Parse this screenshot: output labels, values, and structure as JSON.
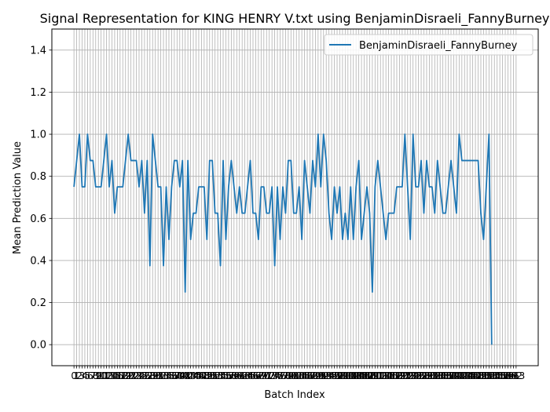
{
  "chart_data": {
    "type": "line",
    "title": "Signal Representation for KING HENRY V.txt using BenjaminDisraeli_FannyBurney",
    "xlabel": "Batch Index",
    "ylabel": "Mean Prediction Value",
    "ylim": [
      -0.1,
      1.5
    ],
    "yticks": [
      "0.0",
      "0.2",
      "0.4",
      "0.6",
      "0.8",
      "1.0",
      "1.2",
      "1.4"
    ],
    "grid": true,
    "legend_placement": "top-right",
    "x_start": 0,
    "x_end": 163,
    "series": [
      {
        "name": "BenjaminDisraeli_FannyBurney",
        "color": "#1f77b4",
        "values": [
          0.75,
          0.875,
          1.0,
          0.75,
          0.75,
          1.0,
          0.875,
          0.875,
          0.75,
          0.75,
          0.75,
          0.875,
          1.0,
          0.75,
          0.875,
          0.625,
          0.75,
          0.75,
          0.75,
          0.875,
          1.0,
          0.875,
          0.875,
          0.875,
          0.75,
          0.875,
          0.625,
          0.875,
          0.375,
          1.0,
          0.875,
          0.75,
          0.75,
          0.375,
          0.75,
          0.5,
          0.75,
          0.875,
          0.875,
          0.75,
          0.875,
          0.25,
          0.875,
          0.5,
          0.625,
          0.625,
          0.75,
          0.75,
          0.75,
          0.5,
          0.875,
          0.875,
          0.625,
          0.625,
          0.375,
          0.875,
          0.5,
          0.75,
          0.875,
          0.75,
          0.625,
          0.75,
          0.625,
          0.625,
          0.75,
          0.875,
          0.625,
          0.625,
          0.5,
          0.75,
          0.75,
          0.625,
          0.625,
          0.75,
          0.375,
          0.75,
          0.5,
          0.75,
          0.625,
          0.875,
          0.875,
          0.625,
          0.625,
          0.75,
          0.5,
          0.875,
          0.75,
          0.625,
          0.875,
          0.75,
          1.0,
          0.75,
          1.0,
          0.875,
          0.625,
          0.5,
          0.75,
          0.625,
          0.75,
          0.5,
          0.625,
          0.5,
          0.75,
          0.5,
          0.75,
          0.875,
          0.5,
          0.625,
          0.75,
          0.625,
          0.25,
          0.75,
          0.875,
          0.75,
          0.625,
          0.5,
          0.625,
          0.625,
          0.625,
          0.75,
          0.75,
          0.75,
          1.0,
          0.75,
          0.5,
          1.0,
          0.75,
          0.75,
          0.875,
          0.625,
          0.875,
          0.75,
          0.75,
          0.625,
          0.875,
          0.75,
          0.625,
          0.625,
          0.75,
          0.875,
          0.75,
          0.625,
          1.0,
          0.875,
          0.875,
          0.875,
          0.875,
          0.875,
          0.875,
          0.875,
          0.625,
          0.5,
          0.75,
          1.0,
          0.0
        ]
      }
    ]
  }
}
